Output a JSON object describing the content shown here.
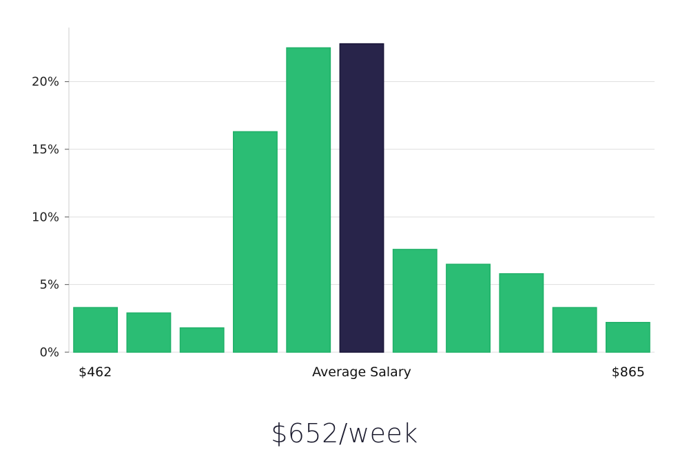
{
  "chart_data": {
    "type": "bar",
    "x_labels": {
      "left": "$462",
      "center": "Average Salary",
      "right": "$865"
    },
    "values": [
      3.3,
      2.9,
      1.8,
      16.3,
      22.5,
      22.8,
      7.6,
      6.5,
      5.8,
      3.3,
      2.2
    ],
    "highlight_index": 5,
    "yticks": [
      0,
      5,
      10,
      15,
      20
    ],
    "ytick_labels": [
      "0%",
      "5%",
      "10%",
      "15%",
      "20%"
    ],
    "ylim": [
      0,
      24
    ],
    "grid": true,
    "colors": {
      "bar": "#2bbd74",
      "bar_border": "#20b068",
      "highlight": "#28244a",
      "grid": "#dddddd",
      "axis": "#cccccc"
    }
  },
  "salary_summary": "$652/week"
}
